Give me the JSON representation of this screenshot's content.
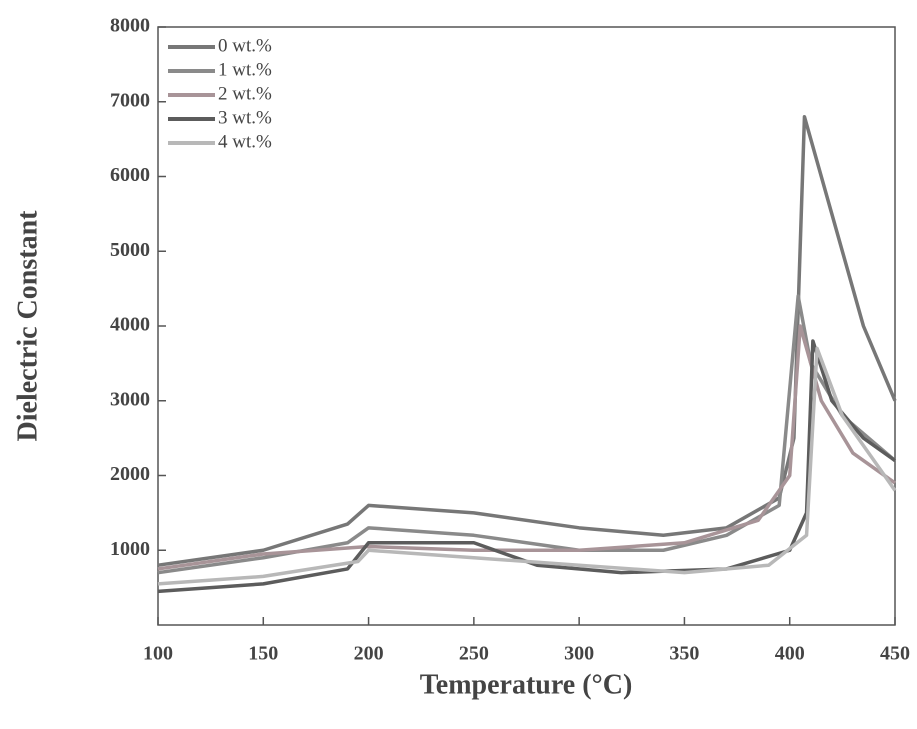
{
  "chart_data": {
    "type": "line",
    "xlabel": "Temperature (°C)",
    "ylabel": "Dielectric Constant",
    "xlim": [
      100,
      450
    ],
    "xticks": [
      100,
      150,
      200,
      250,
      300,
      350,
      400,
      450
    ],
    "ylim": [
      0,
      8000
    ],
    "yticks": [
      1000,
      2000,
      3000,
      4000,
      5000,
      6000,
      7000,
      8000
    ],
    "legend": "upper-left",
    "series": [
      {
        "name": "0 wt.%",
        "color": "#777777",
        "x": [
          100,
          150,
          190,
          200,
          250,
          300,
          340,
          370,
          395,
          402,
          407,
          420,
          435,
          450
        ],
        "values": [
          800,
          1000,
          1350,
          1600,
          1500,
          1300,
          1200,
          1300,
          1700,
          2500,
          6800,
          5500,
          4000,
          3000
        ]
      },
      {
        "name": "1 wt.%",
        "color": "#8a8a8a",
        "x": [
          100,
          150,
          190,
          200,
          250,
          300,
          340,
          370,
          395,
          404,
          410,
          425,
          450
        ],
        "values": [
          700,
          900,
          1100,
          1300,
          1200,
          1000,
          1000,
          1200,
          1600,
          4400,
          3500,
          2800,
          2200
        ]
      },
      {
        "name": "2 wt.%",
        "color": "#a89498",
        "x": [
          100,
          150,
          200,
          250,
          300,
          350,
          385,
          400,
          405,
          415,
          430,
          450
        ],
        "values": [
          750,
          950,
          1050,
          1000,
          1000,
          1100,
          1400,
          2000,
          4000,
          3000,
          2300,
          1900
        ]
      },
      {
        "name": "3 wt.%",
        "color": "#5c5c5c",
        "x": [
          100,
          150,
          190,
          200,
          250,
          280,
          320,
          370,
          400,
          408,
          411,
          420,
          435,
          450
        ],
        "values": [
          450,
          550,
          750,
          1100,
          1100,
          800,
          700,
          750,
          1000,
          1500,
          3800,
          3000,
          2500,
          2200
        ]
      },
      {
        "name": "4 wt.%",
        "color": "#b8b8b8",
        "x": [
          100,
          150,
          195,
          200,
          250,
          300,
          350,
          390,
          408,
          413,
          425,
          440,
          450
        ],
        "values": [
          550,
          650,
          850,
          1000,
          900,
          800,
          700,
          800,
          1200,
          3700,
          2800,
          2200,
          1800
        ]
      }
    ]
  }
}
